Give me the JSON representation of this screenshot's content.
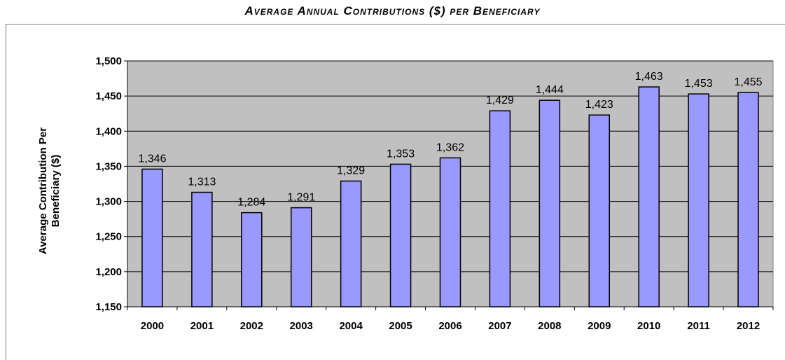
{
  "chart_data": {
    "type": "bar",
    "title": "Average Annual Contributions ($) per Beneficiary",
    "xlabel": "",
    "ylabel": "Average Contribution Per Beneficiary ($)",
    "ylabel_lines": [
      "Average Contribution Per",
      "Beneficiary ($)"
    ],
    "categories": [
      "2000",
      "2001",
      "2002",
      "2003",
      "2004",
      "2005",
      "2006",
      "2007",
      "2008",
      "2009",
      "2010",
      "2011",
      "2012"
    ],
    "values": [
      1346,
      1313,
      1284,
      1291,
      1329,
      1353,
      1362,
      1429,
      1444,
      1423,
      1463,
      1453,
      1455
    ],
    "value_labels": [
      "1,346",
      "1,313",
      "1,284",
      "1,291",
      "1,329",
      "1,353",
      "1,362",
      "1,429",
      "1,444",
      "1,423",
      "1,463",
      "1,453",
      "1,455"
    ],
    "ylim": [
      1150,
      1500
    ],
    "yticks": [
      1150,
      1200,
      1250,
      1300,
      1350,
      1400,
      1450,
      1500
    ],
    "ytick_labels": [
      "1,150",
      "1,200",
      "1,250",
      "1,300",
      "1,350",
      "1,400",
      "1,450",
      "1,500"
    ],
    "grid": true,
    "legend": "none",
    "colors": {
      "bar": "#9999ff",
      "bar_edge": "#000000",
      "plot_background": "#c0c0c0",
      "gridline": "#000000"
    }
  }
}
